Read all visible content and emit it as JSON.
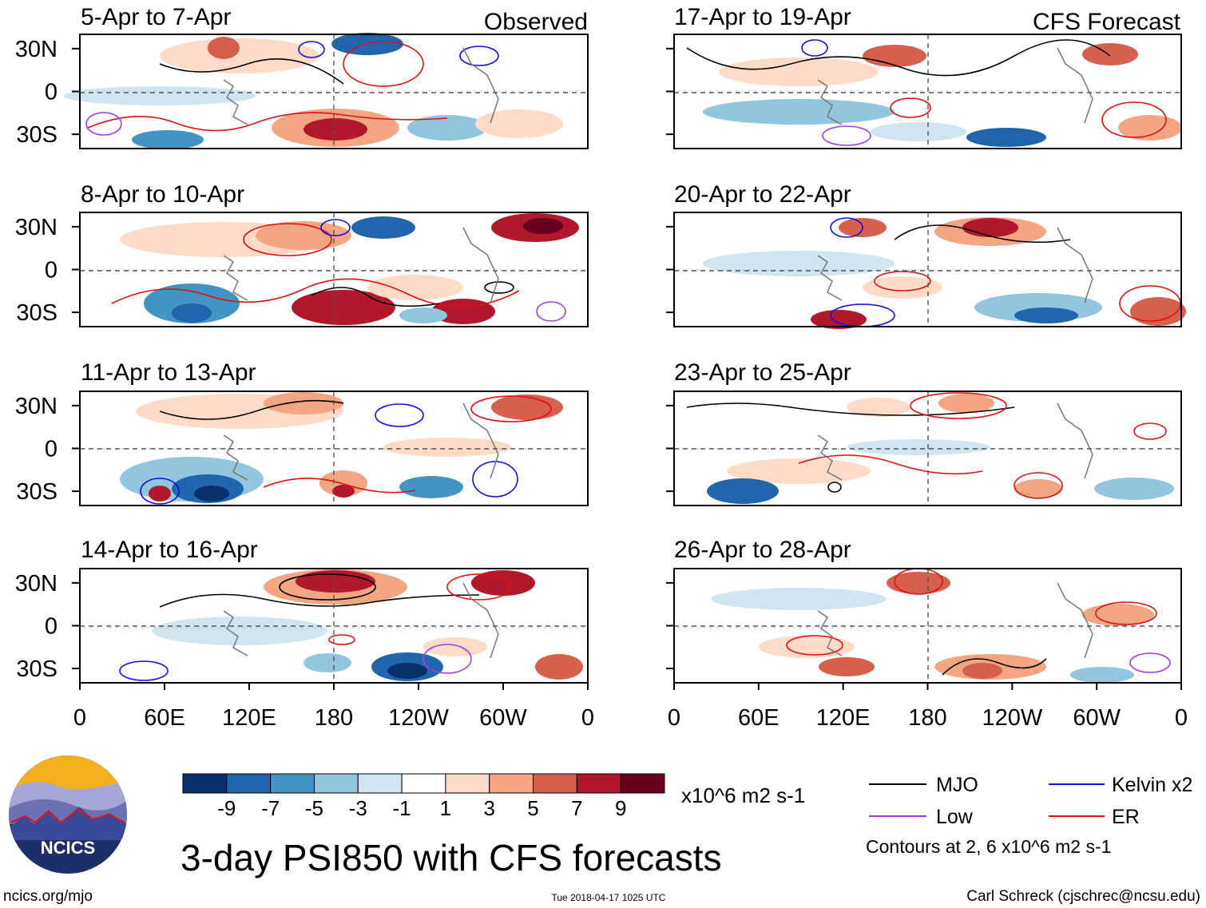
{
  "labels": {
    "observed": "Observed",
    "forecast": "CFS Forecast",
    "main_title": "3-day PSI850 with CFS forecasts",
    "units": "x10^6 m2 s-1",
    "contours_note": "Contours at 2, 6 x10^6 m2 s-1",
    "site_url": "ncics.org/mjo",
    "timestamp": "Tue 2018-04-17 1025 UTC",
    "author": "Carl Schreck (cjschrec@ncsu.edu)",
    "logo_text": "NCICS"
  },
  "legend": [
    {
      "name": "MJO",
      "color": "#000000"
    },
    {
      "name": "Kelvin x2",
      "color": "#1010e0"
    },
    {
      "name": "Low",
      "color": "#a040e0"
    },
    {
      "name": "ER",
      "color": "#e01010"
    }
  ],
  "colorbar": {
    "colors": [
      "#08306b",
      "#2166ac",
      "#4393c3",
      "#92c5de",
      "#d1e5f0",
      "#ffffff",
      "#fddbc7",
      "#f4a582",
      "#d6604d",
      "#b2182b",
      "#67001f"
    ],
    "labels": [
      "-9",
      "-7",
      "-5",
      "-3",
      "-1",
      "1",
      "3",
      "5",
      "7",
      "9"
    ]
  },
  "chart_data": {
    "type": "heatmap",
    "variable": "PSI850 (streamfunction anomaly, 3-day mean)",
    "x_ticks": [
      "0",
      "60E",
      "120E",
      "180",
      "120W",
      "60W",
      "0"
    ],
    "y_ticks": [
      "30N",
      "0",
      "30S"
    ],
    "panels": [
      {
        "period": "5-Apr to 7-Apr",
        "source": "Observed"
      },
      {
        "period": "8-Apr to 10-Apr",
        "source": "Observed"
      },
      {
        "period": "11-Apr to 13-Apr",
        "source": "Observed"
      },
      {
        "period": "14-Apr to 16-Apr",
        "source": "Observed"
      },
      {
        "period": "17-Apr to 19-Apr",
        "source": "CFS Forecast"
      },
      {
        "period": "20-Apr to 22-Apr",
        "source": "CFS Forecast"
      },
      {
        "period": "23-Apr to 25-Apr",
        "source": "CFS Forecast"
      },
      {
        "period": "26-Apr to 28-Apr",
        "source": "CFS Forecast"
      }
    ]
  }
}
